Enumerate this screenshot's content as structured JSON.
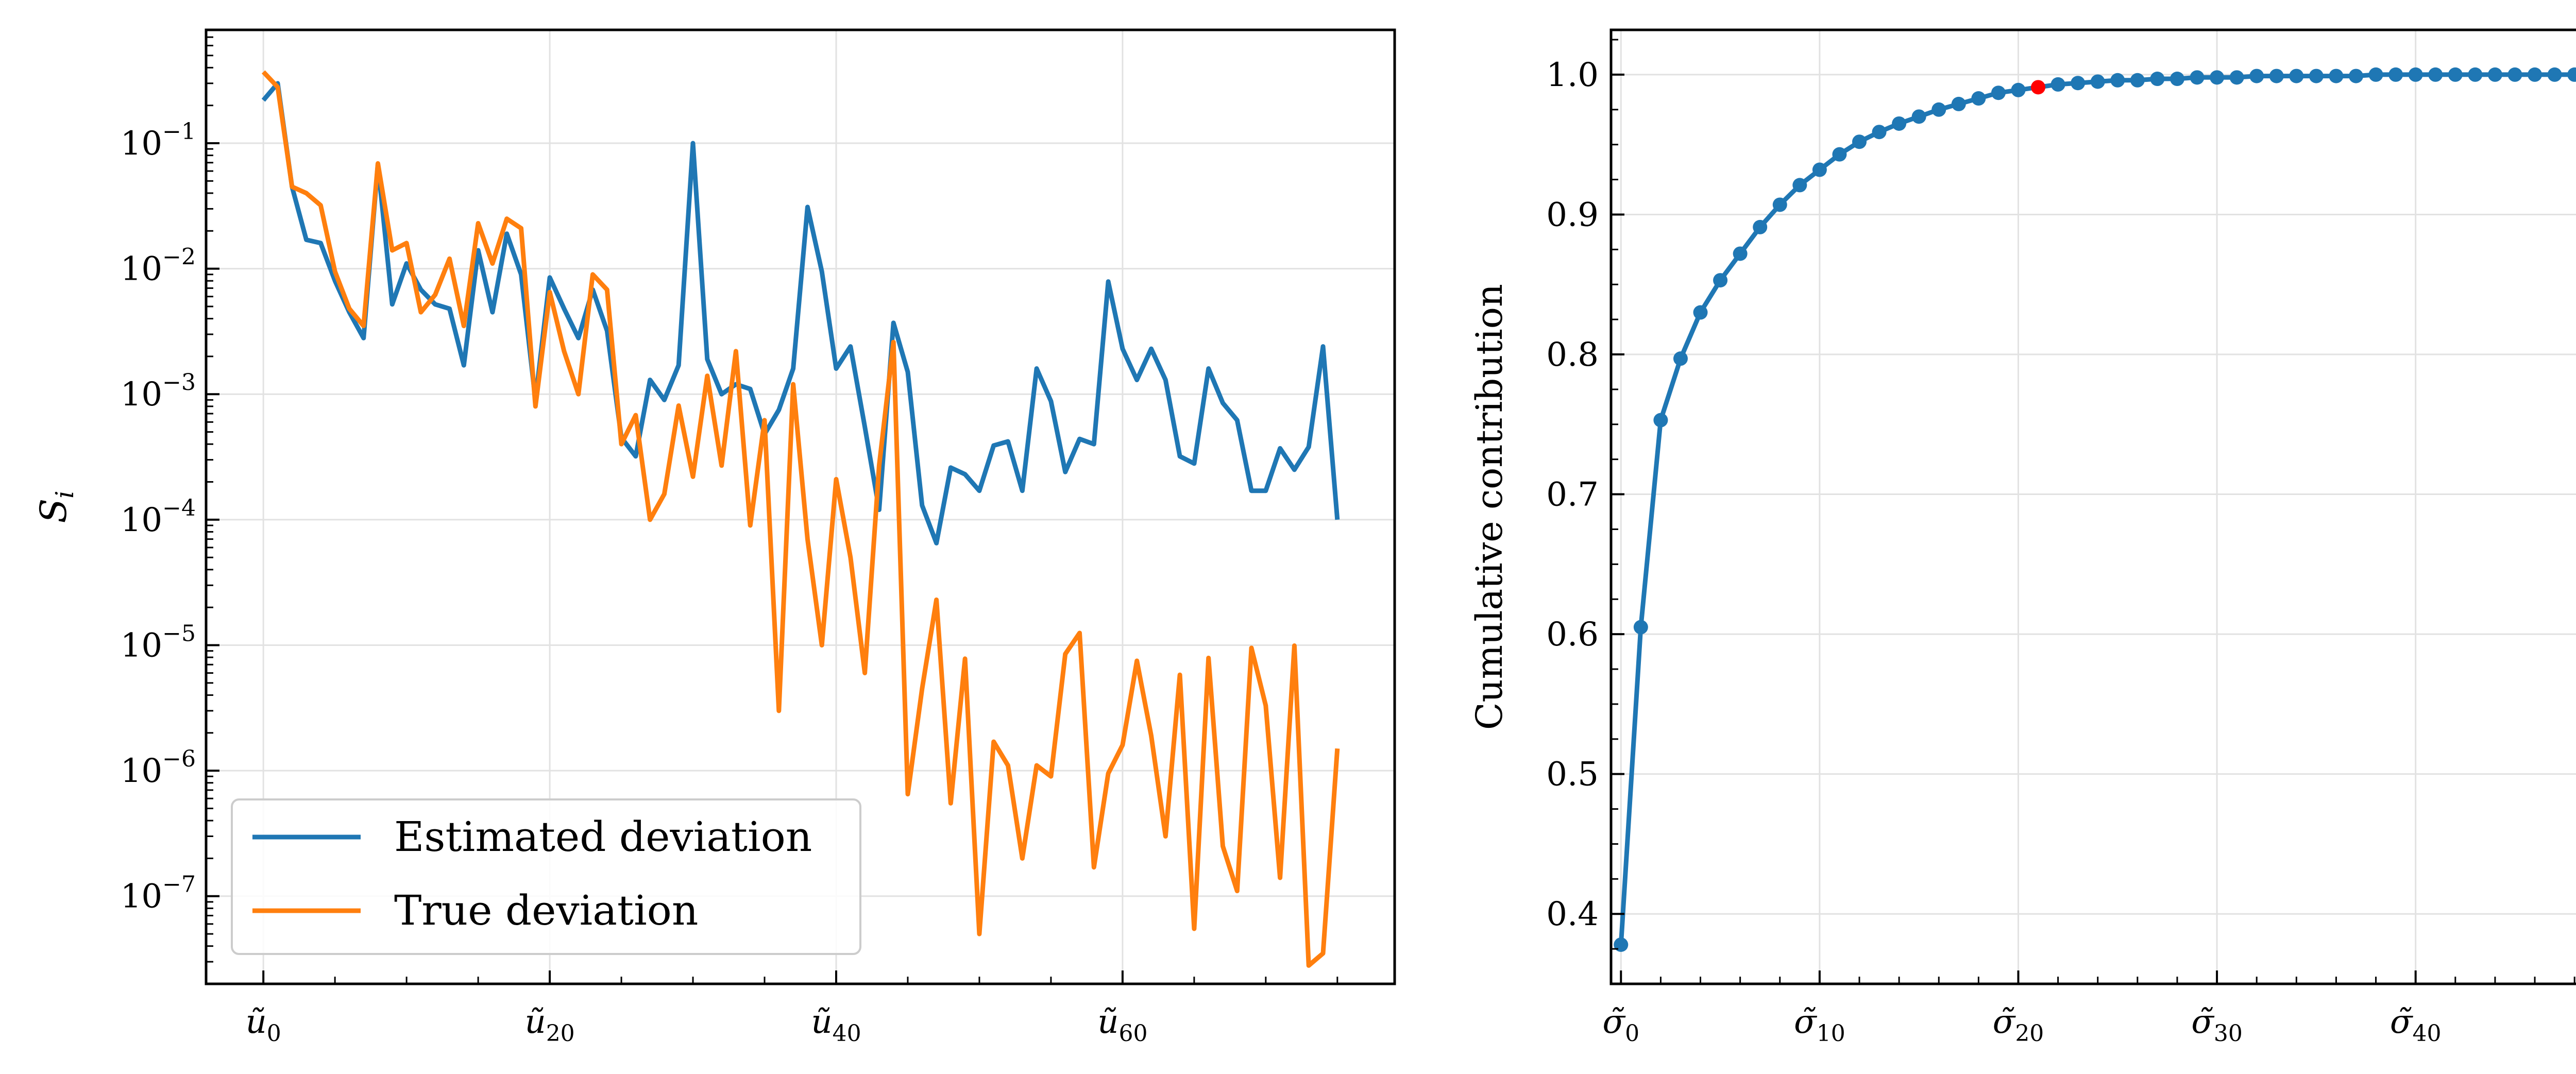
{
  "colors": {
    "estimated": "#1f77b4",
    "true": "#ff7f0e",
    "highlight": "#ff0000"
  },
  "chart_data": [
    {
      "type": "line",
      "title": "",
      "xlabel": "",
      "ylabel": "S_i",
      "yscale": "log",
      "ylim": [
        2e-08,
        0.8
      ],
      "xlim": [
        -4,
        79
      ],
      "grid": true,
      "legend": "lower-left",
      "x_tick_labels": [
        {
          "x": 0,
          "label": "ũ₀",
          "base": "ũ",
          "sub": "0"
        },
        {
          "x": 20,
          "label": "ũ₂₀",
          "base": "ũ",
          "sub": "20"
        },
        {
          "x": 40,
          "label": "ũ₄₀",
          "base": "ũ",
          "sub": "40"
        },
        {
          "x": 60,
          "label": "ũ₆₀",
          "base": "ũ",
          "sub": "60"
        }
      ],
      "y_tick_labels": [
        {
          "exp": -7,
          "label": "10^-7"
        },
        {
          "exp": -6,
          "label": "10^-6"
        },
        {
          "exp": -5,
          "label": "10^-5"
        },
        {
          "exp": -4,
          "label": "10^-4"
        },
        {
          "exp": -3,
          "label": "10^-3"
        },
        {
          "exp": -2,
          "label": "10^-2"
        },
        {
          "exp": -1,
          "label": "10^-1"
        }
      ],
      "series": [
        {
          "name": "Estimated deviation",
          "values": [
            0.22,
            0.3,
            0.045,
            0.017,
            0.016,
            0.008,
            0.0045,
            0.0028,
            0.068,
            0.0052,
            0.011,
            0.0068,
            0.0052,
            0.0048,
            0.0017,
            0.014,
            0.0045,
            0.019,
            0.009,
            0.0009,
            0.0085,
            0.0048,
            0.0028,
            0.0068,
            0.0032,
            0.00045,
            0.00032,
            0.0013,
            0.0009,
            0.0017,
            0.1,
            0.0019,
            0.001,
            0.0012,
            0.0011,
            0.00048,
            0.00075,
            0.0016,
            0.031,
            0.0095,
            0.0016,
            0.0024,
            0.00055,
            0.00012,
            0.0037,
            0.0015,
            0.00013,
            6.5e-05,
            0.00026,
            0.00023,
            0.00017,
            0.00039,
            0.00042,
            0.00017,
            0.0016,
            0.00088,
            0.00024,
            0.00044,
            0.0004,
            0.0079,
            0.0023,
            0.0013,
            0.0023,
            0.0013,
            0.00032,
            0.00028,
            0.0016,
            0.00085,
            0.00062,
            0.00017,
            0.00017,
            0.00037,
            0.00025,
            0.00038,
            0.0024,
            0.0001
          ]
        },
        {
          "name": "True deviation",
          "values": [
            0.37,
            0.28,
            0.045,
            0.04,
            0.032,
            0.0095,
            0.0048,
            0.0035,
            0.069,
            0.014,
            0.016,
            0.0045,
            0.0062,
            0.012,
            0.0035,
            0.023,
            0.011,
            0.025,
            0.021,
            0.0008,
            0.0065,
            0.0022,
            0.001,
            0.009,
            0.0068,
            0.0004,
            0.00068,
            0.0001,
            0.00016,
            0.00081,
            0.00022,
            0.0014,
            0.00027,
            0.0022,
            9e-05,
            0.00062,
            3e-06,
            0.0012,
            7e-05,
            1e-05,
            0.00021,
            5e-05,
            6e-06,
            0.00027,
            0.0026,
            6.5e-07,
            4.5e-06,
            2.3e-05,
            5.5e-07,
            7.8e-06,
            5e-08,
            1.7e-06,
            1.1e-06,
            2e-07,
            1.1e-06,
            9e-07,
            8.5e-06,
            1.25e-05,
            1.7e-07,
            9.5e-07,
            1.6e-06,
            7.5e-06,
            1.9e-06,
            3e-07,
            5.8e-06,
            5.5e-08,
            7.9e-06,
            2.5e-07,
            1.1e-07,
            9.5e-06,
            3.3e-06,
            1.4e-07,
            9.9e-06,
            2.8e-08,
            3.5e-08,
            1.5e-06
          ]
        }
      ]
    },
    {
      "type": "line",
      "title": "",
      "xlabel": "",
      "ylabel": "Cumulative contribution",
      "xlim": [
        -0.5,
        49.5
      ],
      "ylim": [
        0.35,
        1.032
      ],
      "grid": true,
      "highlight_index": 21,
      "x_tick_labels": [
        {
          "x": 0,
          "label": "σ̃₀",
          "base": "σ̃",
          "sub": "0"
        },
        {
          "x": 10,
          "label": "σ̃₁₀",
          "base": "σ̃",
          "sub": "10"
        },
        {
          "x": 20,
          "label": "σ̃₂₀",
          "base": "σ̃",
          "sub": "20"
        },
        {
          "x": 30,
          "label": "σ̃₃₀",
          "base": "σ̃",
          "sub": "30"
        },
        {
          "x": 40,
          "label": "σ̃₄₀",
          "base": "σ̃",
          "sub": "40"
        }
      ],
      "y_tick_labels": [
        "0.4",
        "0.5",
        "0.6",
        "0.7",
        "0.8",
        "0.9",
        "1.0"
      ],
      "series": [
        {
          "name": "",
          "values": [
            0.378,
            0.605,
            0.753,
            0.797,
            0.83,
            0.853,
            0.872,
            0.891,
            0.907,
            0.921,
            0.932,
            0.943,
            0.952,
            0.959,
            0.965,
            0.97,
            0.975,
            0.979,
            0.983,
            0.987,
            0.989,
            0.991,
            0.993,
            0.994,
            0.995,
            0.996,
            0.996,
            0.997,
            0.997,
            0.998,
            0.998,
            0.998,
            0.999,
            0.999,
            0.999,
            0.999,
            0.999,
            0.999,
            1.0,
            1.0,
            1.0,
            1.0,
            1.0,
            1.0,
            1.0,
            1.0,
            1.0,
            1.0,
            1.0,
            1.0
          ]
        }
      ]
    }
  ]
}
